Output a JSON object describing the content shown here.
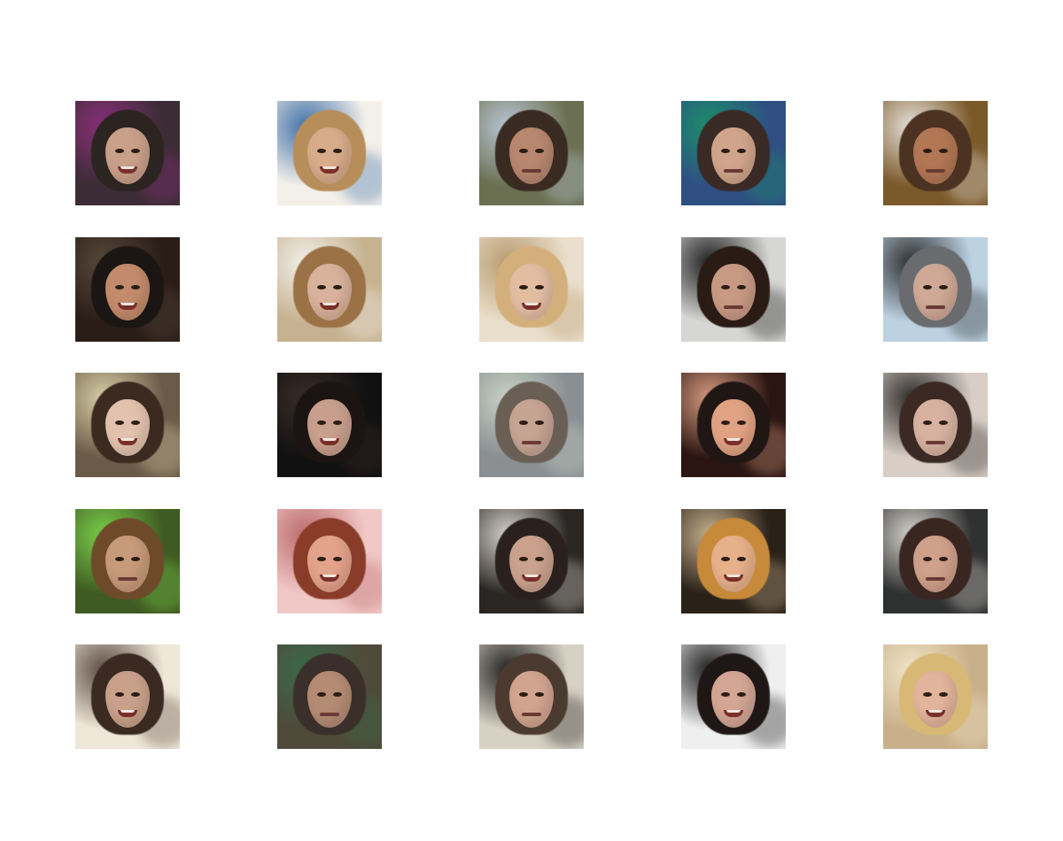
{
  "grid": {
    "rows": 5,
    "cols": 5,
    "tiles": [
      {
        "bg": "#3b2c35",
        "accent": "#8a2f7a",
        "hair": "#2b2420",
        "skin": "#c9a08a",
        "smile": true
      },
      {
        "bg": "#f3efe9",
        "accent": "#3f6fa8",
        "hair": "#b78e5a",
        "skin": "#d8ab8a",
        "smile": true
      },
      {
        "bg": "#6c7052",
        "accent": "#b9c7d6",
        "hair": "#3a2b22",
        "skin": "#b8876f",
        "smile": false
      },
      {
        "bg": "#2f4f83",
        "accent": "#1a8f6a",
        "hair": "#3a2a26",
        "skin": "#d1a58b",
        "smile": false
      },
      {
        "bg": "#7b5a2a",
        "accent": "#e6e2dd",
        "hair": "#4b3221",
        "skin": "#b27755",
        "smile": false
      },
      {
        "bg": "#2a1d18",
        "accent": "#57483a",
        "hair": "#1b1513",
        "skin": "#c38b6c",
        "smile": true
      },
      {
        "bg": "#c6b291",
        "accent": "#f3f0ea",
        "hair": "#9b7245",
        "skin": "#d8b29a",
        "smile": true
      },
      {
        "bg": "#eadfcc",
        "accent": "#b89b6f",
        "hair": "#d3b07b",
        "skin": "#e2bda2",
        "smile": true
      },
      {
        "bg": "#d6d7d5",
        "accent": "#1b1b1b",
        "hair": "#2a1b14",
        "skin": "#c89a84",
        "smile": false
      },
      {
        "bg": "#bcd2e2",
        "accent": "#2a2a2a",
        "hair": "#6a6b6f",
        "skin": "#cfa896",
        "smile": false
      },
      {
        "bg": "#6a5a48",
        "accent": "#d8cfa6",
        "hair": "#3a2a1f",
        "skin": "#e2c2ae",
        "smile": true
      },
      {
        "bg": "#111111",
        "accent": "#3a2c28",
        "hair": "#1b1413",
        "skin": "#c89f8d",
        "smile": true
      },
      {
        "bg": "#8b8f92",
        "accent": "#c8d3c6",
        "hair": "#6a5f55",
        "skin": "#c6a493",
        "smile": false
      },
      {
        "bg": "#2a1512",
        "accent": "#d79c7f",
        "hair": "#201614",
        "skin": "#e0a283",
        "smile": true
      },
      {
        "bg": "#d8cec6",
        "accent": "#2b2a29",
        "hair": "#3b2a24",
        "skin": "#d7b2a0",
        "smile": false
      },
      {
        "bg": "#3f5a22",
        "accent": "#7ad04a",
        "hair": "#6e4a2a",
        "skin": "#c79a7a",
        "smile": false
      },
      {
        "bg": "#f0c8c6",
        "accent": "#bb6a6a",
        "hair": "#8a3c2b",
        "skin": "#e3a28a",
        "smile": true
      },
      {
        "bg": "#2a2623",
        "accent": "#d6d2ce",
        "hair": "#2a211e",
        "skin": "#c9a18c",
        "smile": true
      },
      {
        "bg": "#2a2118",
        "accent": "#c7b18e",
        "hair": "#c78a3a",
        "skin": "#e6b08a",
        "smile": true
      },
      {
        "bg": "#2f3030",
        "accent": "#d8d4cf",
        "hair": "#3a2621",
        "skin": "#cfa08a",
        "smile": false
      },
      {
        "bg": "#efe7d8",
        "accent": "#5a4a40",
        "hair": "#3a2a22",
        "skin": "#c9a18a",
        "smile": true
      },
      {
        "bg": "#4f4a3a",
        "accent": "#3a6a4a",
        "hair": "#3a2f2a",
        "skin": "#b48c74",
        "smile": false
      },
      {
        "bg": "#d7d1c4",
        "accent": "#1f1f1f",
        "hair": "#4a3a30",
        "skin": "#d1a48f",
        "smile": false
      },
      {
        "bg": "#efefef",
        "accent": "#1a1a1a",
        "hair": "#1f1715",
        "skin": "#d2a594",
        "smile": true
      },
      {
        "bg": "#c9b08b",
        "accent": "#f0e4c6",
        "hair": "#d8b875",
        "skin": "#e2b49b",
        "smile": true
      }
    ]
  }
}
